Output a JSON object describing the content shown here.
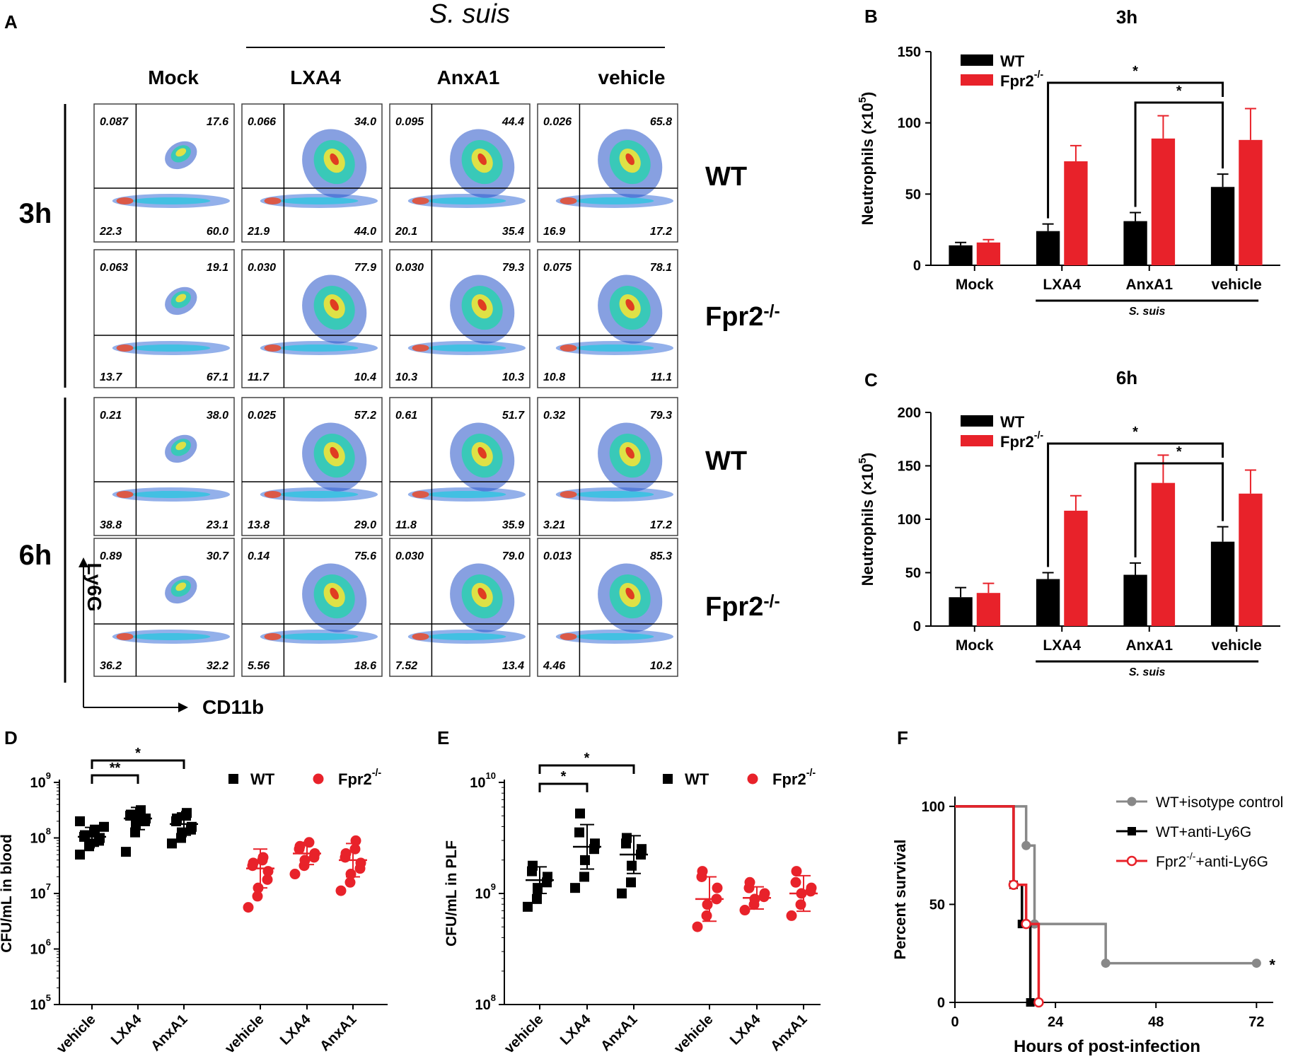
{
  "panels": {
    "A": "A",
    "B": "B",
    "C": "C",
    "D": "D",
    "E": "E",
    "F": "F"
  },
  "colors": {
    "wt": "#000000",
    "ko": "#e8222a",
    "gray": "#888888"
  },
  "flow": {
    "treatment_header": "S. suis",
    "columns": [
      "Mock",
      "LXA4",
      "AnxA1",
      "vehicle"
    ],
    "times": [
      "3h",
      "6h"
    ],
    "genotype_labels": [
      {
        "base": "WT",
        "sup": ""
      },
      {
        "base": "Fpr2",
        "sup": "-/-"
      },
      {
        "base": "WT",
        "sup": ""
      },
      {
        "base": "Fpr2",
        "sup": "-/-"
      }
    ],
    "x_axis": "CD11b",
    "y_axis": "Ly6G",
    "quadrants": [
      [
        [
          "0.087",
          "17.6",
          "22.3",
          "60.0"
        ],
        [
          "0.066",
          "34.0",
          "21.9",
          "44.0"
        ],
        [
          "0.095",
          "44.4",
          "20.1",
          "35.4"
        ],
        [
          "0.026",
          "65.8",
          "16.9",
          "17.2"
        ]
      ],
      [
        [
          "0.063",
          "19.1",
          "13.7",
          "67.1"
        ],
        [
          "0.030",
          "77.9",
          "11.7",
          "10.4"
        ],
        [
          "0.030",
          "79.3",
          "10.3",
          "10.3"
        ],
        [
          "0.075",
          "78.1",
          "10.8",
          "11.1"
        ]
      ],
      [
        [
          "0.21",
          "38.0",
          "38.8",
          "23.1"
        ],
        [
          "0.025",
          "57.2",
          "13.8",
          "29.0"
        ],
        [
          "0.61",
          "51.7",
          "11.8",
          "35.9"
        ],
        [
          "0.32",
          "79.3",
          "3.21",
          "17.2"
        ]
      ],
      [
        [
          "0.89",
          "30.7",
          "36.2",
          "32.2"
        ],
        [
          "0.14",
          "75.6",
          "5.56",
          "18.6"
        ],
        [
          "0.030",
          "79.0",
          "7.52",
          "13.4"
        ],
        [
          "0.013",
          "85.3",
          "4.46",
          "10.2"
        ]
      ]
    ]
  },
  "chart_data": [
    {
      "panel": "B",
      "type": "bar",
      "title": "3h",
      "categories": [
        "Mock",
        "LXA4",
        "AnxA1",
        "vehicle"
      ],
      "series": [
        {
          "name": "WT",
          "values": [
            14,
            24,
            31,
            55
          ],
          "errors": [
            2,
            5,
            6,
            9
          ]
        },
        {
          "name": "Fpr2",
          "name_sup": "-/-",
          "values": [
            16,
            73,
            89,
            88
          ],
          "errors": [
            2,
            11,
            16,
            22
          ]
        }
      ],
      "ylabel": "Neutrophils (×10",
      "ylabel_sup": "5",
      "ylabel_end": ")",
      "ylim": [
        0,
        150
      ],
      "yticks": [
        "0",
        "50",
        "100",
        "150"
      ],
      "group_label": "S. suis",
      "sig": [
        "*",
        "*"
      ]
    },
    {
      "panel": "C",
      "type": "bar",
      "title": "6h",
      "categories": [
        "Mock",
        "LXA4",
        "AnxA1",
        "vehicle"
      ],
      "series": [
        {
          "name": "WT",
          "values": [
            27,
            44,
            48,
            79
          ],
          "errors": [
            9,
            6,
            11,
            14
          ]
        },
        {
          "name": "Fpr2",
          "name_sup": "-/-",
          "values": [
            31,
            108,
            134,
            124
          ],
          "errors": [
            9,
            14,
            26,
            22
          ]
        }
      ],
      "ylabel": "Neutrophils (×10",
      "ylabel_sup": "5",
      "ylabel_end": ")",
      "ylim": [
        0,
        200
      ],
      "yticks": [
        "0",
        "50",
        "100",
        "150",
        "200"
      ],
      "group_label": "S. suis",
      "sig": [
        "*",
        "*"
      ]
    },
    {
      "panel": "D",
      "type": "scatter",
      "ylabel": "CFU/mL in blood",
      "yscale": "log",
      "ylim_log10": [
        5,
        9
      ],
      "yticks": [
        {
          "b": "10",
          "e": "5"
        },
        {
          "b": "10",
          "e": "6"
        },
        {
          "b": "10",
          "e": "7"
        },
        {
          "b": "10",
          "e": "8"
        },
        {
          "b": "10",
          "e": "9"
        }
      ],
      "categories": [
        "vehicle",
        "LXA4",
        "AnxA1",
        "vehicle",
        "LXA4",
        "AnxA1"
      ],
      "legend": [
        {
          "name": "WT",
          "sup": ""
        },
        {
          "name": "Fpr2",
          "sup": "-/-"
        }
      ],
      "sig": [
        "**",
        "*"
      ],
      "groups": [
        {
          "genotype": "WT",
          "points_log10": [
            7.7,
            7.85,
            7.9,
            7.95,
            8.0,
            8.02,
            8.05,
            8.1,
            8.15,
            8.2,
            8.3
          ],
          "mean_log10": 8.02,
          "sd_log10": 0.17
        },
        {
          "genotype": "WT",
          "points_log10": [
            7.75,
            8.1,
            8.25,
            8.3,
            8.35,
            8.4,
            8.42,
            8.45,
            8.5
          ],
          "mean_log10": 8.35,
          "sd_log10": 0.2
        },
        {
          "genotype": "WT",
          "points_log10": [
            7.9,
            8.0,
            8.1,
            8.15,
            8.2,
            8.3,
            8.35,
            8.4,
            8.45
          ],
          "mean_log10": 8.25,
          "sd_log10": 0.2
        },
        {
          "genotype": "Fpr2-/-",
          "points_log10": [
            6.75,
            6.95,
            7.1,
            7.25,
            7.4,
            7.5,
            7.55,
            7.6,
            7.65
          ],
          "mean_log10": 7.45,
          "sd_log10": 0.35
        },
        {
          "genotype": "Fpr2-/-",
          "points_log10": [
            7.35,
            7.5,
            7.6,
            7.65,
            7.72,
            7.8,
            7.85,
            7.92
          ],
          "mean_log10": 7.72,
          "sd_log10": 0.2
        },
        {
          "genotype": "Fpr2-/-",
          "points_log10": [
            7.05,
            7.2,
            7.35,
            7.45,
            7.55,
            7.65,
            7.72,
            7.8,
            7.95
          ],
          "mean_log10": 7.6,
          "sd_log10": 0.3
        }
      ]
    },
    {
      "panel": "E",
      "type": "scatter",
      "ylabel": "CFU/mL in PLF",
      "yscale": "log",
      "ylim_log10": [
        8,
        10
      ],
      "yticks": [
        {
          "b": "10",
          "e": "8"
        },
        {
          "b": "10",
          "e": "9"
        },
        {
          "b": "10",
          "e": "10"
        }
      ],
      "categories": [
        "vehicle",
        "LXA4",
        "AnxA1",
        "vehicle",
        "LXA4",
        "AnxA1"
      ],
      "legend": [
        {
          "name": "WT",
          "sup": ""
        },
        {
          "name": "Fpr2",
          "sup": "-/-"
        }
      ],
      "sig": [
        "*",
        "*"
      ],
      "groups": [
        {
          "genotype": "WT",
          "points_log10": [
            8.88,
            8.95,
            9.05,
            9.1,
            9.15,
            9.2,
            9.25
          ],
          "mean_log10": 9.12,
          "sd_log10": 0.12
        },
        {
          "genotype": "WT",
          "points_log10": [
            9.05,
            9.15,
            9.3,
            9.4,
            9.45,
            9.55,
            9.72
          ],
          "mean_log10": 9.42,
          "sd_log10": 0.2
        },
        {
          "genotype": "WT",
          "points_log10": [
            9.0,
            9.1,
            9.25,
            9.35,
            9.4,
            9.45,
            9.5
          ],
          "mean_log10": 9.35,
          "sd_log10": 0.17
        },
        {
          "genotype": "Fpr2-/-",
          "points_log10": [
            8.7,
            8.8,
            8.9,
            8.95,
            9.05,
            9.15,
            9.2
          ],
          "mean_log10": 8.95,
          "sd_log10": 0.2
        },
        {
          "genotype": "Fpr2-/-",
          "points_log10": [
            8.85,
            8.9,
            8.95,
            8.97,
            9.0,
            9.05,
            9.1
          ],
          "mean_log10": 8.96,
          "sd_log10": 0.1
        },
        {
          "genotype": "Fpr2-/-",
          "points_log10": [
            8.8,
            8.9,
            9.0,
            9.02,
            9.05,
            9.1,
            9.2
          ],
          "mean_log10": 9.0,
          "sd_log10": 0.16
        }
      ]
    },
    {
      "panel": "F",
      "type": "line",
      "subtype": "survival",
      "xlabel": "Hours of post-infection",
      "ylabel": "Percent survival",
      "xlim": [
        0,
        76
      ],
      "ylim": [
        0,
        105
      ],
      "xticks": [
        "0",
        "24",
        "48",
        "72"
      ],
      "yticks": [
        "0",
        "50",
        "100"
      ],
      "sig": "*",
      "series": [
        {
          "name": "WT+isotype control",
          "sup": "",
          "steps": [
            [
              0,
              100
            ],
            [
              17,
              100
            ],
            [
              17,
              80
            ],
            [
              19,
              80
            ],
            [
              19,
              40
            ],
            [
              36,
              40
            ],
            [
              36,
              20
            ],
            [
              72,
              20
            ]
          ],
          "points": [
            [
              17,
              80
            ],
            [
              19,
              40
            ],
            [
              36,
              20
            ],
            [
              72,
              20
            ]
          ]
        },
        {
          "name": "WT+anti-Ly6G",
          "sup": "",
          "steps": [
            [
              0,
              100
            ],
            [
              14,
              100
            ],
            [
              14,
              60
            ],
            [
              16,
              60
            ],
            [
              16,
              40
            ],
            [
              18,
              40
            ],
            [
              18,
              0
            ]
          ],
          "points": [
            [
              14,
              60
            ],
            [
              16,
              40
            ],
            [
              18,
              0
            ]
          ]
        },
        {
          "name_pre": "Fpr2",
          "sup": "-/-",
          "name_post": "+anti-Ly6G",
          "steps": [
            [
              0,
              100
            ],
            [
              14,
              100
            ],
            [
              14,
              60
            ],
            [
              17,
              60
            ],
            [
              17,
              40
            ],
            [
              20,
              40
            ],
            [
              20,
              0
            ]
          ],
          "points": [
            [
              14,
              60
            ],
            [
              17,
              40
            ],
            [
              20,
              0
            ]
          ]
        }
      ]
    }
  ]
}
